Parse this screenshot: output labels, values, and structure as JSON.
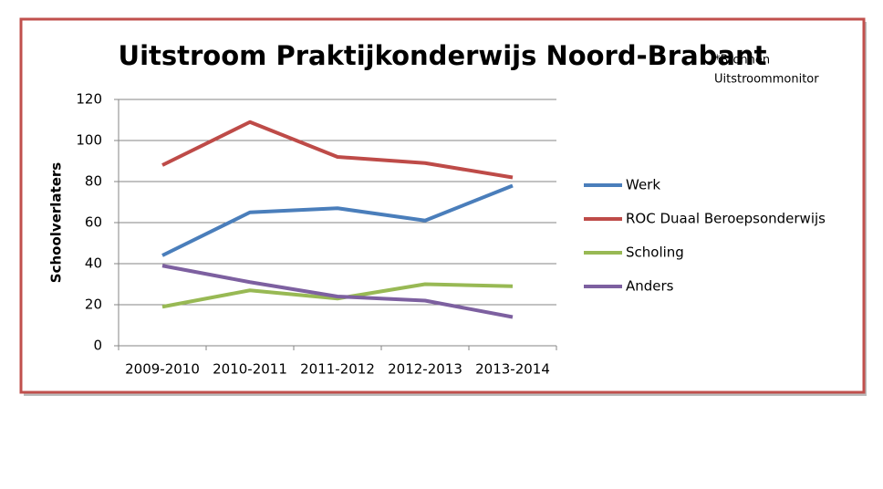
{
  "chart_data": {
    "type": "line",
    "title": "Uitstroom Praktijkonderwijs Noord-Brabant",
    "annotation": [
      "*Bronnen",
      "Uitstroommonitor"
    ],
    "y_label": "Schoolverlaters",
    "categories": [
      "2009-2010",
      "2010-2011",
      "2011-2012",
      "2012-2013",
      "2013-2014"
    ],
    "series": [
      {
        "name": "Werk",
        "color": "#4a7ebb",
        "values": [
          44,
          65,
          67,
          61,
          78
        ]
      },
      {
        "name": "ROC Duaal Beroepsonderwijs",
        "color": "#be4b48",
        "values": [
          88,
          109,
          92,
          89,
          82
        ]
      },
      {
        "name": "Scholing",
        "color": "#98b954",
        "values": [
          19,
          27,
          23,
          30,
          29
        ]
      },
      {
        "name": "Anders",
        "color": "#7d60a0",
        "values": [
          39,
          31,
          24,
          22,
          14
        ]
      }
    ],
    "ylim": [
      0,
      120
    ],
    "yticks": [
      0,
      20,
      40,
      60,
      80,
      100,
      120
    ],
    "grid": true,
    "legend": "right"
  }
}
